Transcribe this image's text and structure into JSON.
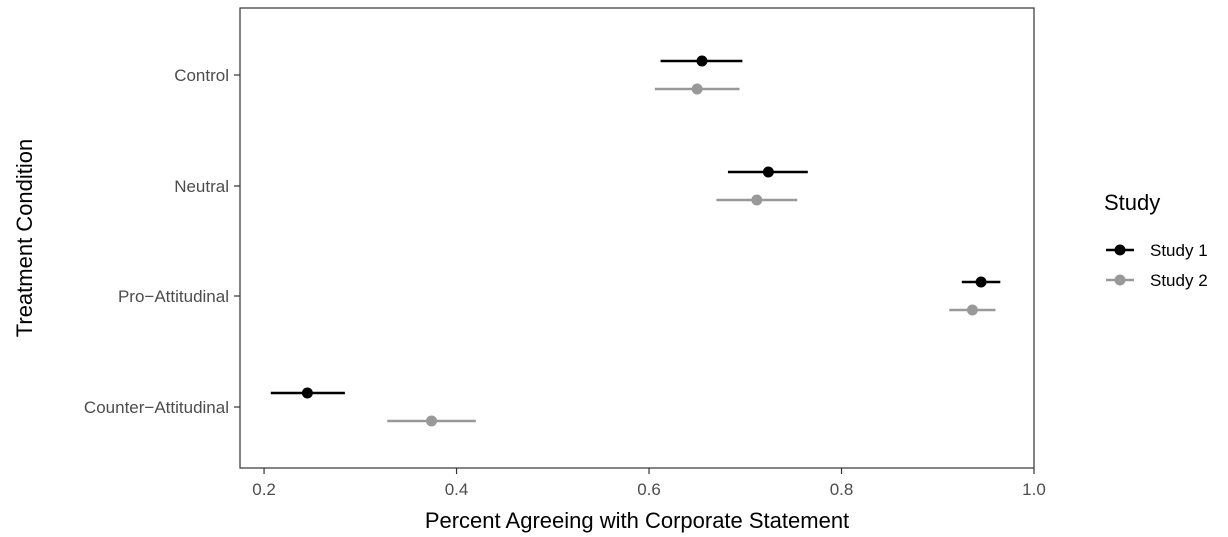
{
  "chart_data": {
    "type": "scatter",
    "subtype": "dot-and-whisker",
    "xlabel": "Percent Agreeing with Corporate Statement",
    "ylabel": "Treatment Condition",
    "xlim": [
      0.175,
      1.0
    ],
    "x_ticks": [
      0.2,
      0.4,
      0.6,
      0.8,
      1.0
    ],
    "x_tick_labels": [
      "0.2",
      "0.4",
      "0.6",
      "0.8",
      "1.0"
    ],
    "categories": [
      "Control",
      "Neutral",
      "Pro−Attitudinal",
      "Counter−Attitudinal"
    ],
    "grid": false,
    "legend": {
      "title": "Study",
      "position": "right"
    },
    "series": [
      {
        "name": "Study 1",
        "color": "#000000",
        "points": [
          {
            "category": "Control",
            "value": 0.655,
            "low": 0.612,
            "high": 0.697
          },
          {
            "category": "Neutral",
            "value": 0.724,
            "low": 0.682,
            "high": 0.765
          },
          {
            "category": "Pro−Attitudinal",
            "value": 0.945,
            "low": 0.925,
            "high": 0.965
          },
          {
            "category": "Counter−Attitudinal",
            "value": 0.245,
            "low": 0.207,
            "high": 0.284
          }
        ]
      },
      {
        "name": "Study 2",
        "color": "#999999",
        "points": [
          {
            "category": "Control",
            "value": 0.65,
            "low": 0.606,
            "high": 0.694
          },
          {
            "category": "Neutral",
            "value": 0.712,
            "low": 0.67,
            "high": 0.754
          },
          {
            "category": "Pro−Attitudinal",
            "value": 0.936,
            "low": 0.912,
            "high": 0.96
          },
          {
            "category": "Counter−Attitudinal",
            "value": 0.374,
            "low": 0.328,
            "high": 0.42
          }
        ]
      }
    ]
  }
}
